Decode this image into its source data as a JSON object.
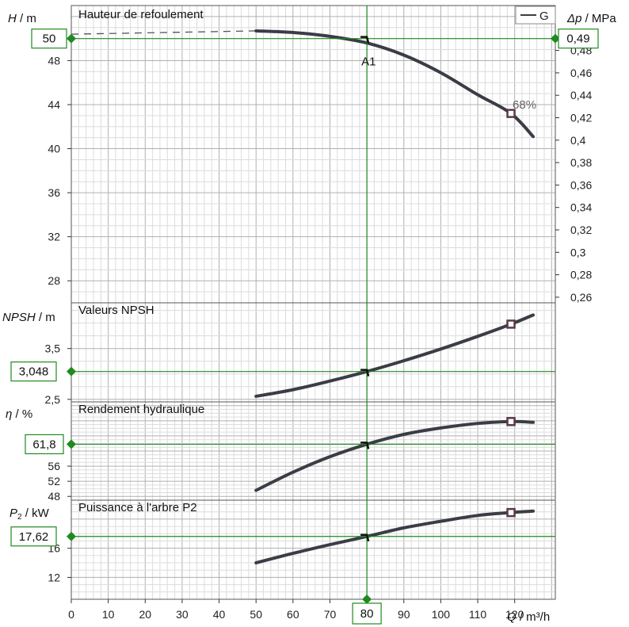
{
  "legend": {
    "label": "G"
  },
  "colors": {
    "curve": "#3a3d45",
    "op_line": "#1f8a1f",
    "op_box_border": "#1f8a1f",
    "grid_minor": "#dcdcdc",
    "grid_major": "#b0b0b0",
    "frame": "#555555",
    "marker": "#5a3a44"
  },
  "x_axis": {
    "label_var": "Q",
    "label_unit": " / m³/h",
    "min": 0,
    "max": 131,
    "ticks": [
      0,
      10,
      20,
      30,
      40,
      50,
      60,
      70,
      80,
      90,
      100,
      110,
      120
    ],
    "tick_labels": [
      "0",
      "10",
      "20",
      "30",
      "40",
      "50",
      "60",
      "70",
      "80",
      "90",
      "100",
      "110",
      "120"
    ]
  },
  "operating_point": {
    "q": 80,
    "q_label": "80",
    "name": "A1",
    "h": 50,
    "h_label": "50",
    "dp_label": "0,49",
    "npsh": 3.048,
    "npsh_label": "3,048",
    "eta": 61.8,
    "eta_label": "61,8",
    "p2": 17.62,
    "p2_label": "17,62"
  },
  "chart_data": [
    {
      "type": "line",
      "title": "Hauteur de refoulement",
      "ylabel_var": "H",
      "ylabel_unit": " / m",
      "y2label_var": "Δp",
      "y2label_unit": " / MPa",
      "ylim": [
        26,
        53
      ],
      "y_ticks": [
        28,
        32,
        36,
        40,
        44,
        48
      ],
      "y_tick_labels": [
        "28",
        "32",
        "36",
        "40",
        "44",
        "48"
      ],
      "y2_ticks": [
        0.26,
        0.28,
        0.3,
        0.32,
        0.34,
        0.36,
        0.38,
        0.4,
        0.42,
        0.44,
        0.46,
        0.48
      ],
      "y2_tick_labels": [
        "0,26",
        "0,28",
        "0,3",
        "0,32",
        "0,34",
        "0,36",
        "0,38",
        "0,4",
        "0,42",
        "0,44",
        "0,46",
        "0,48"
      ],
      "dashed_x": [
        0,
        50
      ],
      "dashed_y": [
        50.4,
        50.7
      ],
      "x": [
        50,
        60,
        70,
        80,
        90,
        100,
        110,
        119,
        125
      ],
      "y": [
        50.7,
        50.55,
        50.2,
        49.6,
        48.5,
        46.9,
        44.9,
        43.2,
        41.1
      ],
      "marker": {
        "x": 119,
        "y": 43.2,
        "label": "68%"
      }
    },
    {
      "type": "line",
      "title": "Valeurs NPSH",
      "ylabel_var": "NPSH",
      "ylabel_unit": " / m",
      "ylim": [
        2.45,
        4.4
      ],
      "y_ticks": [
        2.5,
        3.5
      ],
      "y_tick_labels": [
        "2,5",
        "3,5"
      ],
      "x": [
        50,
        60,
        70,
        80,
        90,
        100,
        110,
        119,
        125
      ],
      "y": [
        2.56,
        2.69,
        2.86,
        3.048,
        3.26,
        3.49,
        3.74,
        3.98,
        4.16
      ],
      "marker": {
        "x": 119,
        "y": 3.98
      }
    },
    {
      "type": "line",
      "title": "Rendement hydraulique",
      "ylabel_var": "η",
      "ylabel_unit": " / %",
      "ylim": [
        47,
        73
      ],
      "y_ticks": [
        48,
        52,
        56
      ],
      "y_tick_labels": [
        "48",
        "52",
        "56"
      ],
      "x": [
        50,
        60,
        70,
        80,
        90,
        100,
        110,
        119,
        125
      ],
      "y": [
        49.6,
        54.4,
        58.5,
        61.8,
        64.4,
        66.1,
        67.3,
        67.8,
        67.6
      ],
      "marker": {
        "x": 119,
        "y": 67.8
      }
    },
    {
      "type": "line",
      "title": "Puissance à l'arbre P2",
      "ylabel_var": "P",
      "ylabel_sub": "2",
      "ylabel_unit": " / kW",
      "ylim": [
        9,
        22.6
      ],
      "y_ticks": [
        12,
        16
      ],
      "y_tick_labels": [
        "12",
        "16"
      ],
      "x": [
        50,
        60,
        70,
        80,
        90,
        100,
        110,
        119,
        125
      ],
      "y": [
        14.0,
        15.3,
        16.5,
        17.62,
        18.8,
        19.7,
        20.5,
        20.9,
        21.1
      ],
      "marker": {
        "x": 119,
        "y": 20.9
      }
    }
  ]
}
